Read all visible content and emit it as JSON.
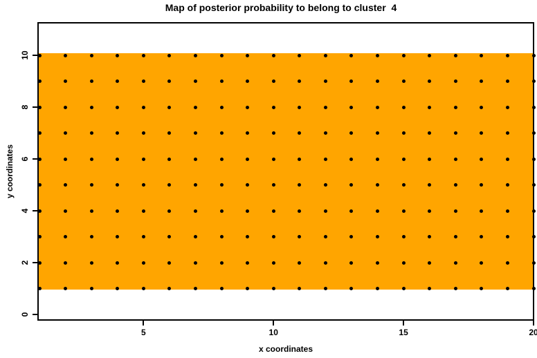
{
  "chart_data": {
    "type": "heatmap",
    "title": "Map of posterior probability to belong to cluster  4",
    "xlabel": "x coordinates",
    "ylabel": "y coordinates",
    "x_ticks": [
      5,
      10,
      15,
      20
    ],
    "y_ticks": [
      0,
      2,
      4,
      6,
      8,
      10
    ],
    "xlim": [
      0.95,
      20
    ],
    "ylim": [
      -0.2,
      11.25
    ],
    "grid": {
      "x": [
        1,
        2,
        3,
        4,
        5,
        6,
        7,
        8,
        9,
        10,
        11,
        12,
        13,
        14,
        15,
        16,
        17,
        18,
        19,
        20
      ],
      "y": [
        1,
        2,
        3,
        4,
        5,
        6,
        7,
        8,
        9,
        10
      ]
    },
    "region": {
      "color": "#FFA500",
      "x_range": [
        0.95,
        20
      ],
      "y_range": [
        0.96,
        10.08
      ]
    },
    "points": {
      "color": "#000000",
      "shape": "filled-circle"
    },
    "legend": "none",
    "grid_lines": "off"
  },
  "colors": {
    "background": "#FFFFFF",
    "axis": "#000000",
    "region_fill": "#FFA500",
    "point_fill": "#000000"
  }
}
